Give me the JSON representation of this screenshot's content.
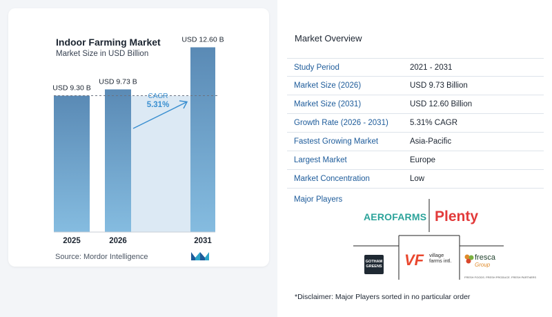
{
  "left_card": {
    "title": "Indoor Farming Market",
    "subtitle": "Market Size in USD Billion",
    "source": "Source:  Mordor Intelligence",
    "logo_icon": "mordor-intelligence-logo"
  },
  "chart_data": {
    "type": "bar",
    "categories": [
      "2025",
      "2026",
      "2031"
    ],
    "values": [
      9.3,
      9.73,
      12.6
    ],
    "value_labels": [
      "USD 9.30 B",
      "USD 9.73 B",
      "USD 12.60 B"
    ],
    "cagr_label": "CAGR",
    "cagr_value": "5.31%",
    "bar_color": "#5b8db8",
    "bar_color_light": "#7fb3d9",
    "ylim": [
      0,
      13
    ],
    "grid": false
  },
  "overview": {
    "title": "Market Overview",
    "rows": [
      {
        "label": "Study Period",
        "value": "2021 - 2031"
      },
      {
        "label": "Market Size (2026)",
        "value": "USD 9.73 Billion"
      },
      {
        "label": "Market Size (2031)",
        "value": "USD 12.60 Billion"
      },
      {
        "label": "Growth Rate (2026 - 2031)",
        "value": "5.31% CAGR"
      },
      {
        "label": "Fastest Growing Market",
        "value": "Asia-Pacific"
      },
      {
        "label": "Largest Market",
        "value": "Europe"
      },
      {
        "label": "Market Concentration",
        "value": "Low"
      }
    ]
  },
  "players": {
    "title": "Major Players",
    "aerofarms": "AEROFARMS",
    "plenty": "Plenty",
    "gotham": "GOTHAM GREENS",
    "vf": "VF",
    "vf_text": "village farms intl.",
    "fresca": "fresca",
    "fresca_sub": "Group",
    "fresca_tag": "FRESH FOODS. FRESH PRODUCE. FRESH PARTNERS"
  },
  "disclaimer": "*Disclaimer: Major Players sorted in no particular order"
}
